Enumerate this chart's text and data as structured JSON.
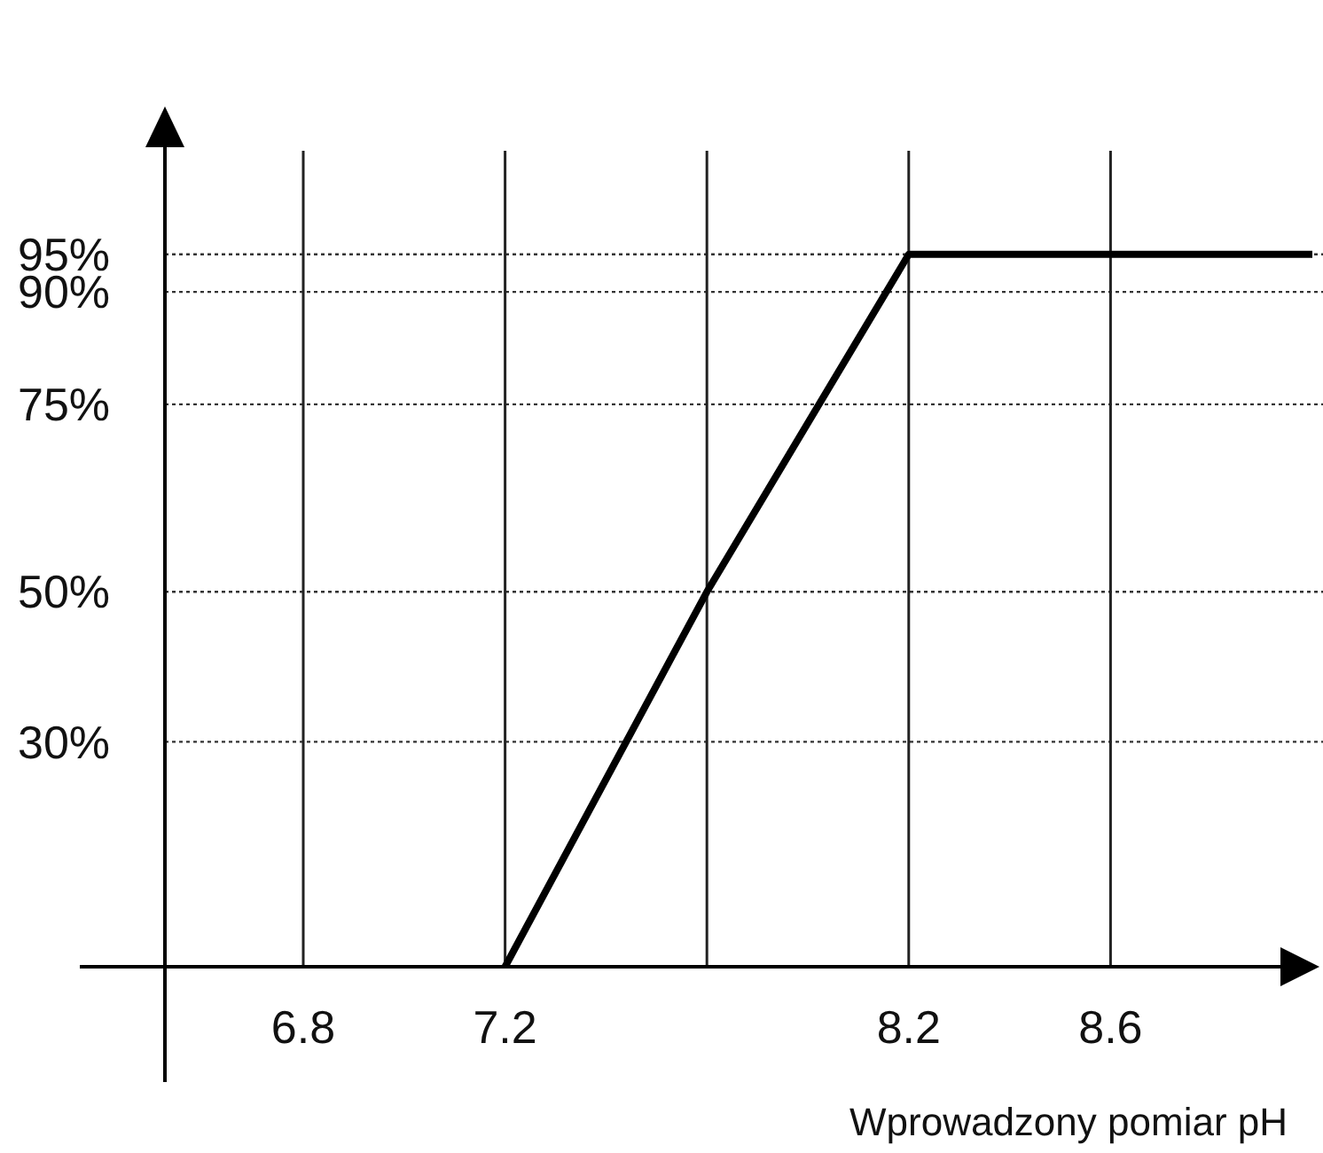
{
  "chart_data": {
    "type": "line",
    "xlabel": "Wprowadzony pomiar pH",
    "categories": [
      "6.8",
      "7.2",
      null,
      "8.2",
      "8.6",
      null
    ],
    "series": [
      {
        "color": "#000000",
        "values": [
          null,
          0,
          50,
          95,
          95,
          95
        ]
      }
    ],
    "ylim": [
      0,
      110
    ],
    "yticks": [
      {
        "value": 30,
        "label": "30%"
      },
      {
        "value": 50,
        "label": "50%"
      },
      {
        "value": 75,
        "label": "75%"
      },
      {
        "value": 90,
        "label": "90%"
      },
      {
        "value": 95,
        "label": "95%"
      }
    ],
    "grid": true,
    "marker": "none",
    "line_style": "solid"
  }
}
